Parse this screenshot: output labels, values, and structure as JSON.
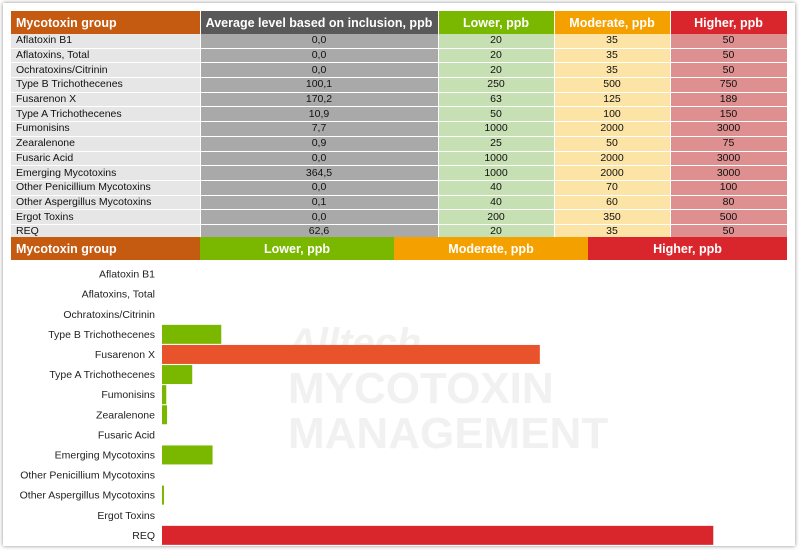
{
  "colors": {
    "header_group": "#c55a11",
    "header_avg": "#595959",
    "lower": "#7ab800",
    "moderate": "#f4a100",
    "higher": "#d9262c",
    "bar_mid": "#e8532b"
  },
  "table": {
    "headers": [
      "Mycotoxin group",
      "Average level based on inclusion, ppb",
      "Lower, ppb",
      "Moderate, ppb",
      "Higher, ppb"
    ],
    "rows": [
      {
        "name": "Aflatoxin B1",
        "avg": "0,0",
        "lower": "20",
        "moderate": "35",
        "higher": "50"
      },
      {
        "name": "Aflatoxins, Total",
        "avg": "0,0",
        "lower": "20",
        "moderate": "35",
        "higher": "50"
      },
      {
        "name": "Ochratoxins/Citrinin",
        "avg": "0,0",
        "lower": "20",
        "moderate": "35",
        "higher": "50"
      },
      {
        "name": "Type B Trichothecenes",
        "avg": "100,1",
        "lower": "250",
        "moderate": "500",
        "higher": "750"
      },
      {
        "name": "Fusarenon X",
        "avg": "170,2",
        "lower": "63",
        "moderate": "125",
        "higher": "189"
      },
      {
        "name": "Type A Trichothecenes",
        "avg": "10,9",
        "lower": "50",
        "moderate": "100",
        "higher": "150"
      },
      {
        "name": "Fumonisins",
        "avg": "7,7",
        "lower": "1000",
        "moderate": "2000",
        "higher": "3000"
      },
      {
        "name": "Zearalenone",
        "avg": "0,9",
        "lower": "25",
        "moderate": "50",
        "higher": "75"
      },
      {
        "name": "Fusaric Acid",
        "avg": "0,0",
        "lower": "1000",
        "moderate": "2000",
        "higher": "3000"
      },
      {
        "name": "Emerging Mycotoxins",
        "avg": "364,5",
        "lower": "1000",
        "moderate": "2000",
        "higher": "3000"
      },
      {
        "name": "Other Penicillium Mycotoxins",
        "avg": "0,0",
        "lower": "40",
        "moderate": "70",
        "higher": "100"
      },
      {
        "name": "Other Aspergillus Mycotoxins",
        "avg": "0,1",
        "lower": "40",
        "moderate": "60",
        "higher": "80"
      },
      {
        "name": "Ergot Toxins",
        "avg": "0,0",
        "lower": "200",
        "moderate": "350",
        "higher": "500"
      },
      {
        "name": "REQ",
        "avg": "62,6",
        "lower": "20",
        "moderate": "35",
        "higher": "50"
      }
    ]
  },
  "legend": {
    "group_label": "Mycotoxin group",
    "lower": "Lower, ppb",
    "moderate": "Moderate, ppb",
    "higher": "Higher, ppb"
  },
  "watermark": {
    "brand": "Alltech",
    "line1": "MYCOTOXIN",
    "line2": "MANAGEMENT"
  },
  "chart_data": {
    "type": "bar",
    "orientation": "horizontal",
    "categories": [
      "Aflatoxin B1",
      "Aflatoxins, Total",
      "Ochratoxins/Citrinin",
      "Type B Trichothecenes",
      "Fusarenon X",
      "Type A Trichothecenes",
      "Fumonisins",
      "Zearalenone",
      "Fusaric Acid",
      "Emerging Mycotoxins",
      "Other Penicillium Mycotoxins",
      "Other Aspergillus Mycotoxins",
      "Ergot Toxins",
      "REQ"
    ],
    "values": [
      0.0,
      0.0,
      0.0,
      0.1068,
      0.6808,
      0.0545,
      0.0077,
      0.0091,
      0.0,
      0.0911,
      0.0,
      0.0009,
      0.0,
      0.9933
    ],
    "risk_levels": [
      "lower",
      "lower",
      "lower",
      "lower",
      "moderate",
      "lower",
      "lower",
      "lower",
      "lower",
      "lower",
      "lower",
      "lower",
      "lower",
      "higher"
    ],
    "xlim": [
      0,
      1
    ],
    "title": "",
    "xlabel": "",
    "ylabel": ""
  }
}
